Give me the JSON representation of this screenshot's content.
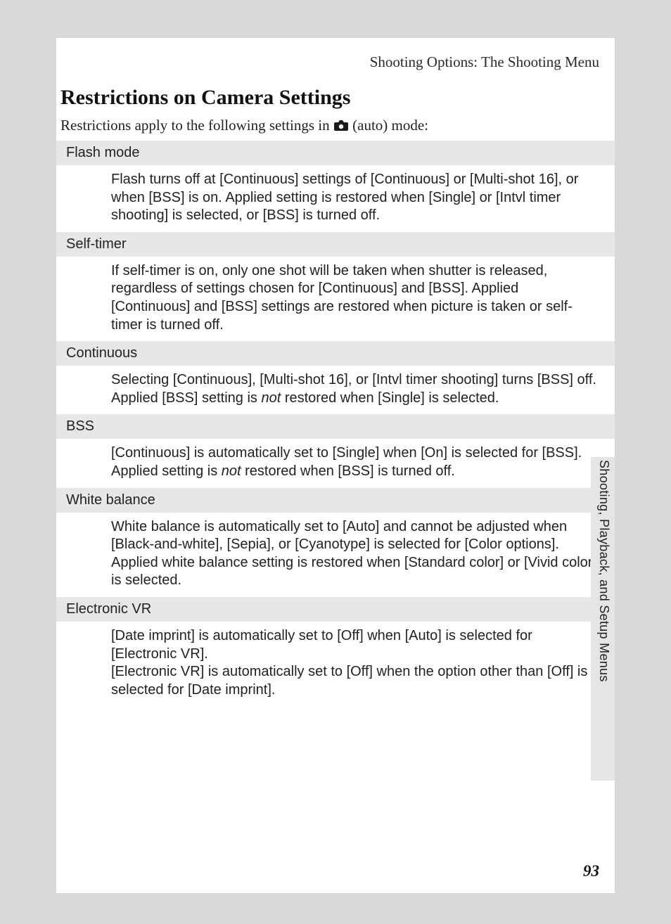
{
  "header": "Shooting Options: The Shooting Menu",
  "title": "Restrictions on Camera Settings",
  "intro_before": "Restrictions apply to the following settings in ",
  "intro_after": " (auto) mode:",
  "sections": [
    {
      "label": "Flash mode",
      "body_html": "Flash turns off at [Continuous] settings of [Continuous] or [Multi-shot 16], or when [BSS] is on. Applied setting is restored when [Single] or [Intvl timer shooting] is selected, or [BSS] is turned off."
    },
    {
      "label": "Self-timer",
      "body_html": "If self-timer is on, only one shot will be taken when shutter is released, regardless of settings chosen for [Continuous] and [BSS]. Applied [Continuous] and [BSS] settings are restored when picture is taken or self-timer is turned off."
    },
    {
      "label": "Continuous",
      "body_html": "Selecting [Continuous], [Multi-shot 16], or [Intvl timer shooting] turns [BSS] off.<br>Applied [BSS] setting is <em>not</em> restored when [Single] is selected."
    },
    {
      "label": "BSS",
      "body_html": "[Continuous] is automatically set to [Single] when [On] is selected for [BSS]. Applied setting is <em>not</em> restored when [BSS] is turned off."
    },
    {
      "label": "White balance",
      "body_html": "White balance is automatically set to [Auto] and cannot be adjusted when [Black-and-white], [Sepia], or [Cyanotype] is selected for [Color options]. Applied white balance setting is restored when [Standard color] or [Vivid color] is selected."
    },
    {
      "label": "Electronic VR",
      "body_html": "[Date imprint] is automatically set to [Off] when [Auto] is selected for [Electronic VR].<br>[Electronic VR] is automatically set to [Off] when the option other than [Off] is selected for [Date imprint]."
    }
  ],
  "side_label": "Shooting, Playback, and Setup Menus",
  "page_number": "93",
  "colors": {
    "page_bg": "#ffffff",
    "outer_bg": "#d9d9d9",
    "section_header_bg": "#e7e7e7",
    "side_tab_bg": "#e5e5e5",
    "text": "#1a1a1a"
  },
  "fonts": {
    "title_size_pt": 30,
    "header_size_pt": 21,
    "section_label_size_pt": 20,
    "body_size_pt": 20,
    "side_label_size_pt": 18,
    "page_num_size_pt": 23
  }
}
